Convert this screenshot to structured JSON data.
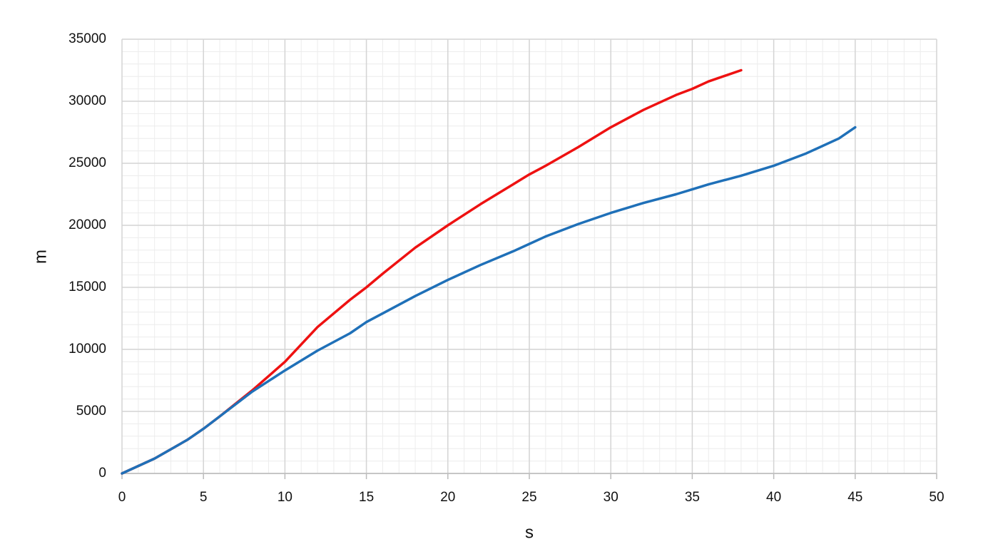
{
  "chart_data": {
    "type": "line",
    "x_label": "s",
    "y_label": "m",
    "xlim": [
      0,
      50
    ],
    "xticks": [
      0,
      5,
      10,
      15,
      20,
      25,
      30,
      35,
      40,
      45,
      50
    ],
    "ylim": [
      0,
      35000
    ],
    "yticks": [
      0,
      5000,
      10000,
      15000,
      20000,
      25000,
      30000,
      35000
    ],
    "grid": true,
    "minor_grid": true,
    "series": [
      {
        "color": "#ee1111",
        "x": [
          0,
          2,
          4,
          5,
          6,
          8,
          10,
          12,
          14,
          15,
          16,
          18,
          20,
          22,
          24,
          25,
          26,
          28,
          30,
          32,
          34,
          35,
          36,
          38
        ],
        "values": [
          0,
          1200,
          2700,
          3600,
          4600,
          6700,
          9000,
          11800,
          14000,
          15000,
          16100,
          18200,
          20000,
          21700,
          23300,
          24100,
          24800,
          26300,
          27900,
          29300,
          30500,
          31000,
          31600,
          32500
        ]
      },
      {
        "color": "#1f70b8",
        "x": [
          0,
          2,
          4,
          5,
          6,
          8,
          10,
          12,
          14,
          15,
          16,
          18,
          20,
          22,
          24,
          25,
          26,
          28,
          30,
          32,
          34,
          35,
          36,
          38,
          40,
          42,
          44,
          45
        ],
        "values": [
          0,
          1200,
          2700,
          3600,
          4600,
          6600,
          8300,
          9900,
          11300,
          12200,
          12900,
          14300,
          15600,
          16800,
          17900,
          18500,
          19100,
          20100,
          21000,
          21800,
          22500,
          22900,
          23300,
          24000,
          24800,
          25800,
          27000,
          27900
        ]
      }
    ]
  }
}
